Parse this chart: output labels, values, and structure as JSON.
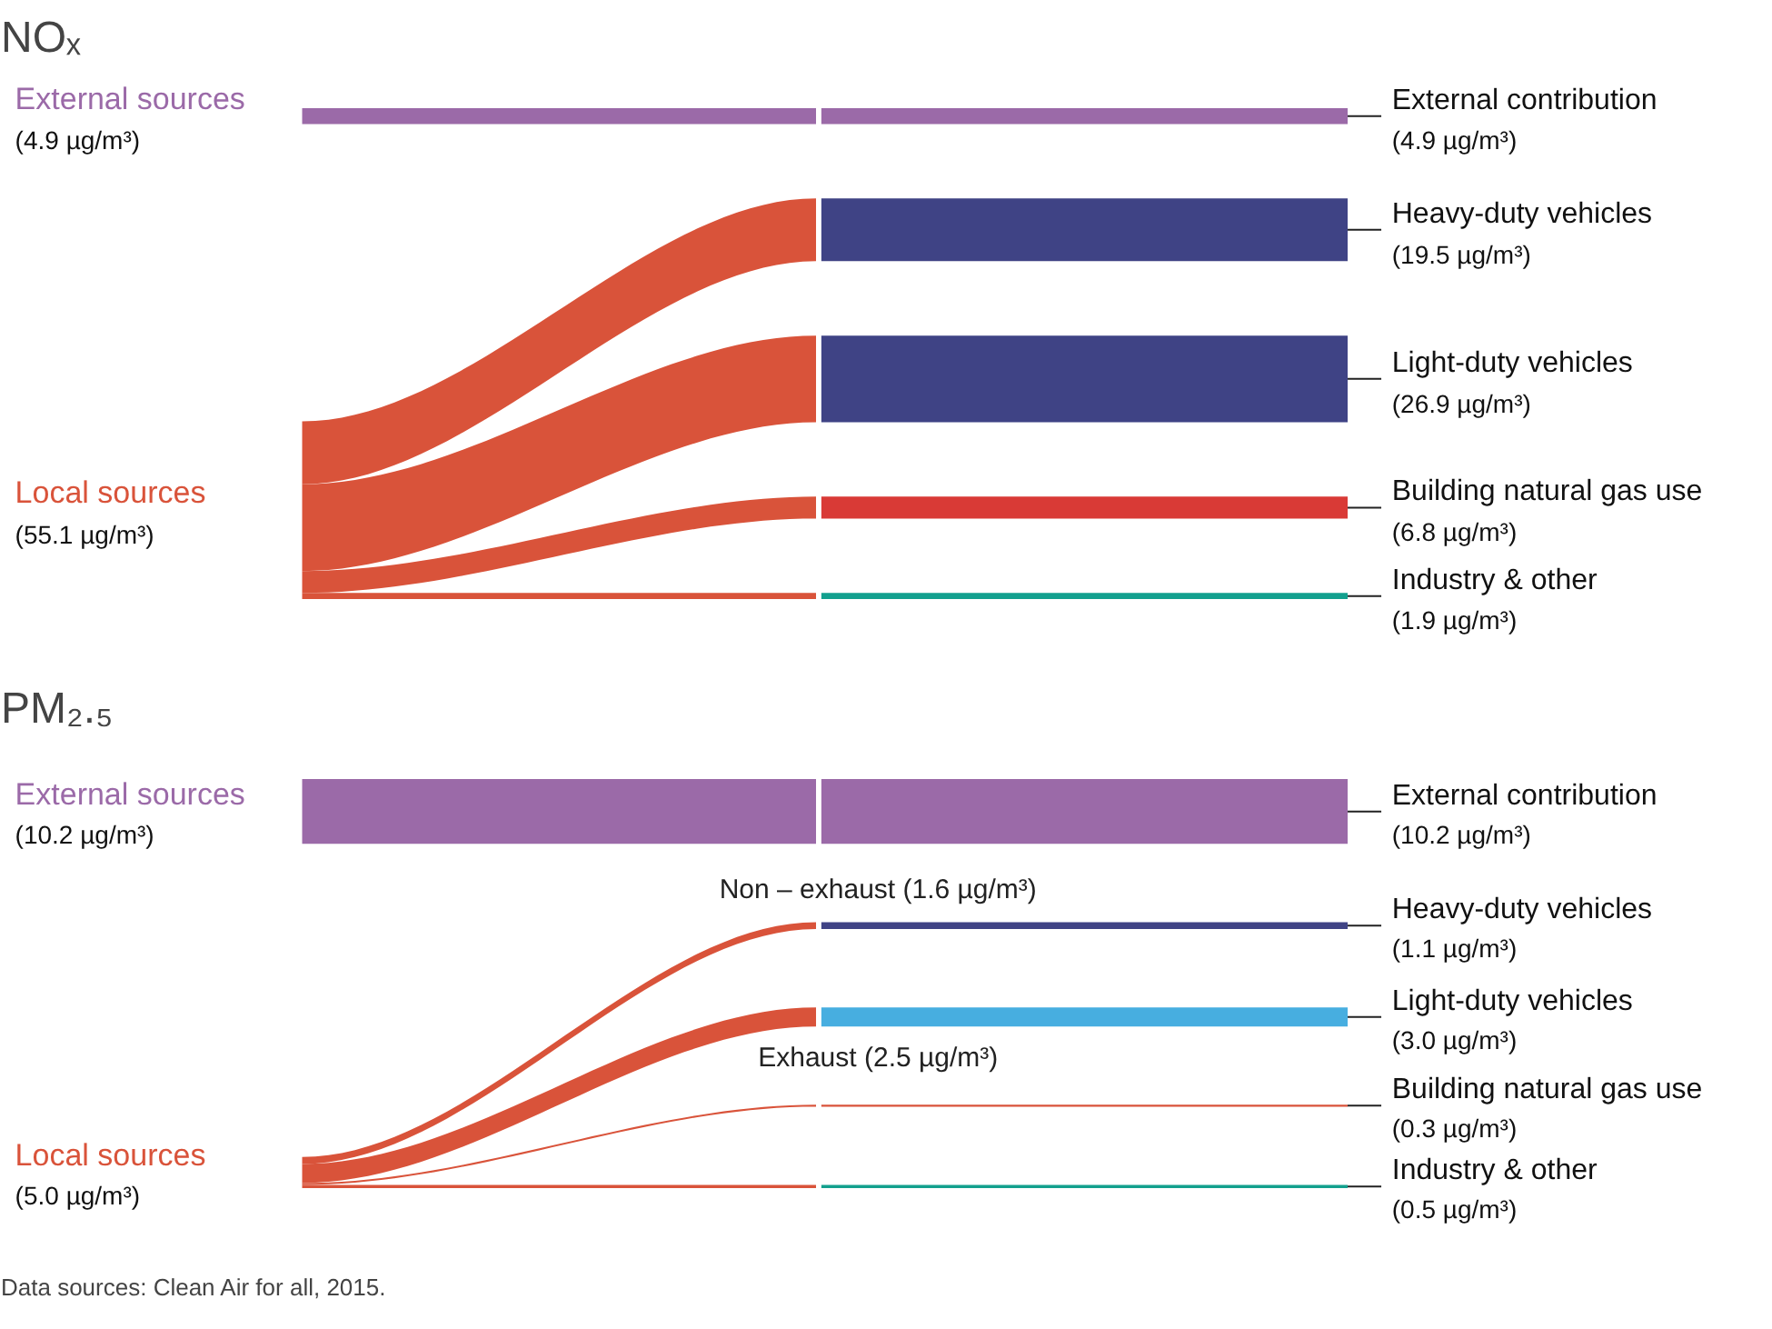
{
  "chart_data": [
    {
      "type": "other",
      "title": "NOₓ",
      "categories": [
        "External contribution",
        "Heavy-duty vehicles",
        "Light-duty vehicles",
        "Building natural gas use",
        "Industry & other"
      ],
      "values": [
        4.9,
        19.5,
        26.9,
        6.8,
        1.9
      ],
      "colors": [
        "#9b6aa8",
        "#3f4385",
        "#3f4385",
        "#d93a36",
        "#12a08e"
      ],
      "value_labels": [
        "(4.9 µg/m³)",
        "(19.5 µg/m³)",
        "(26.9 µg/m³)",
        "(6.8 µg/m³)",
        "(1.9 µg/m³)"
      ],
      "annotations": [
        "External sources",
        "(4.9 µg/m³)",
        "Local sources",
        "(55.1 µg/m³)"
      ]
    },
    {
      "type": "other",
      "title": "PM₂.₅",
      "categories": [
        "External contribution",
        "Heavy-duty vehicles",
        "Light-duty vehicles",
        "Building natural gas use",
        "Industry & other"
      ],
      "values": [
        10.2,
        1.1,
        3.0,
        0.3,
        0.5
      ],
      "colors": [
        "#9b6aa8",
        "#3f4385",
        "#47aee0",
        "#d9533a",
        "#12a08e"
      ],
      "value_labels": [
        "(10.2 µg/m³)",
        "(1.1 µg/m³)",
        "(3.0 µg/m³)",
        "(0.3 µg/m³)",
        "(0.5 µg/m³)"
      ],
      "annotations": [
        "External sources",
        "(10.2 µg/m³)",
        "Local sources",
        "(5.0 µg/m³)",
        "Non – exhaust (1.6 µg/m³)",
        "Exhaust (2.5 µg/m³)",
        "Data sources: Clean Air for all, 2015."
      ]
    }
  ]
}
